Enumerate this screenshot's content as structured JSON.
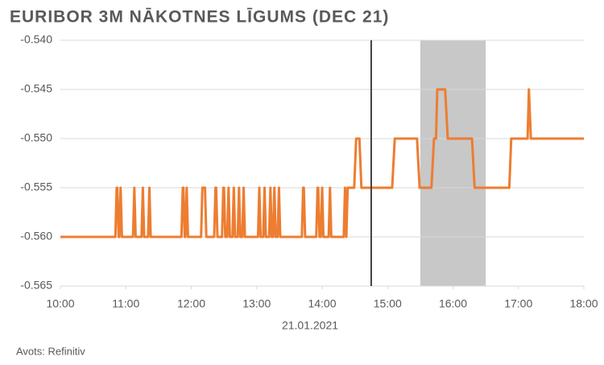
{
  "chart_data": {
    "type": "line",
    "title": "EURIBOR 3M NĀKOTNES LĪGUMS (DEC 21)",
    "x_label": "21.01.2021",
    "source": "Avots: Refinitiv",
    "color": "#ed7d31",
    "grid": true,
    "x": [
      10,
      10.84,
      10.86,
      10.87,
      10.89,
      10.9,
      10.92,
      10.94,
      11.11,
      11.13,
      11.15,
      11.24,
      11.26,
      11.28,
      11.34,
      11.36,
      11.38,
      11.85,
      11.87,
      11.88,
      11.9,
      11.91,
      11.93,
      11.95,
      12.15,
      12.17,
      12.21,
      12.23,
      12.35,
      12.37,
      12.38,
      12.4,
      12.47,
      12.49,
      12.5,
      12.52,
      12.55,
      12.57,
      12.59,
      12.63,
      12.65,
      12.67,
      12.71,
      12.73,
      12.75,
      12.78,
      12.8,
      12.82,
      13.02,
      13.04,
      13.06,
      13.1,
      13.12,
      13.14,
      13.19,
      13.21,
      13.23,
      13.25,
      13.27,
      13.29,
      13.32,
      13.34,
      13.36,
      13.69,
      13.71,
      13.72,
      13.74,
      13.91,
      13.93,
      13.94,
      13.96,
      13.98,
      14.0,
      14.02,
      14.1,
      14.12,
      14.14,
      14.33,
      14.35,
      14.37,
      14.39,
      14.49,
      14.52,
      14.57,
      14.6,
      15.07,
      15.11,
      15.45,
      15.49,
      15.67,
      15.71,
      15.74,
      15.76,
      15.88,
      15.92,
      16.29,
      16.33,
      16.86,
      16.89,
      17.14,
      17.16,
      17.19,
      18
    ],
    "values": [
      -0.56,
      -0.56,
      -0.555,
      -0.555,
      -0.56,
      -0.56,
      -0.555,
      -0.56,
      -0.56,
      -0.555,
      -0.56,
      -0.56,
      -0.555,
      -0.56,
      -0.56,
      -0.555,
      -0.56,
      -0.56,
      -0.555,
      -0.555,
      -0.56,
      -0.56,
      -0.555,
      -0.56,
      -0.56,
      -0.555,
      -0.555,
      -0.56,
      -0.56,
      -0.555,
      -0.555,
      -0.56,
      -0.56,
      -0.555,
      -0.555,
      -0.56,
      -0.56,
      -0.555,
      -0.56,
      -0.56,
      -0.555,
      -0.56,
      -0.56,
      -0.555,
      -0.56,
      -0.56,
      -0.555,
      -0.56,
      -0.56,
      -0.555,
      -0.56,
      -0.56,
      -0.555,
      -0.56,
      -0.56,
      -0.555,
      -0.56,
      -0.56,
      -0.555,
      -0.56,
      -0.56,
      -0.555,
      -0.56,
      -0.56,
      -0.555,
      -0.555,
      -0.56,
      -0.56,
      -0.555,
      -0.555,
      -0.56,
      -0.56,
      -0.555,
      -0.56,
      -0.56,
      -0.555,
      -0.56,
      -0.56,
      -0.555,
      -0.56,
      -0.555,
      -0.555,
      -0.55,
      -0.55,
      -0.555,
      -0.555,
      -0.55,
      -0.55,
      -0.555,
      -0.555,
      -0.55,
      -0.55,
      -0.545,
      -0.545,
      -0.55,
      -0.55,
      -0.555,
      -0.555,
      -0.55,
      -0.55,
      -0.545,
      -0.55,
      -0.55
    ],
    "xlim": [
      10,
      18
    ],
    "xticks": [
      {
        "value": 10,
        "label": "10:00"
      },
      {
        "value": 11,
        "label": "11:00"
      },
      {
        "value": 12,
        "label": "12:00"
      },
      {
        "value": 13,
        "label": "13:00"
      },
      {
        "value": 14,
        "label": "14:00"
      },
      {
        "value": 15,
        "label": "15:00"
      },
      {
        "value": 16,
        "label": "16:00"
      },
      {
        "value": 17,
        "label": "17:00"
      },
      {
        "value": 18,
        "label": "18:00"
      }
    ],
    "ylim": [
      -0.565,
      -0.54
    ],
    "yticks": [
      {
        "value": -0.565,
        "label": "-0.565"
      },
      {
        "value": -0.56,
        "label": "-0.560"
      },
      {
        "value": -0.555,
        "label": "-0.555"
      },
      {
        "value": -0.55,
        "label": "-0.550"
      },
      {
        "value": -0.545,
        "label": "-0.545"
      },
      {
        "value": -0.54,
        "label": "-0.540"
      }
    ],
    "vline_x": 14.75,
    "vline_color": "#404040",
    "shade_x": [
      15.5,
      16.5
    ],
    "shade_color": "#c8c8c8"
  }
}
